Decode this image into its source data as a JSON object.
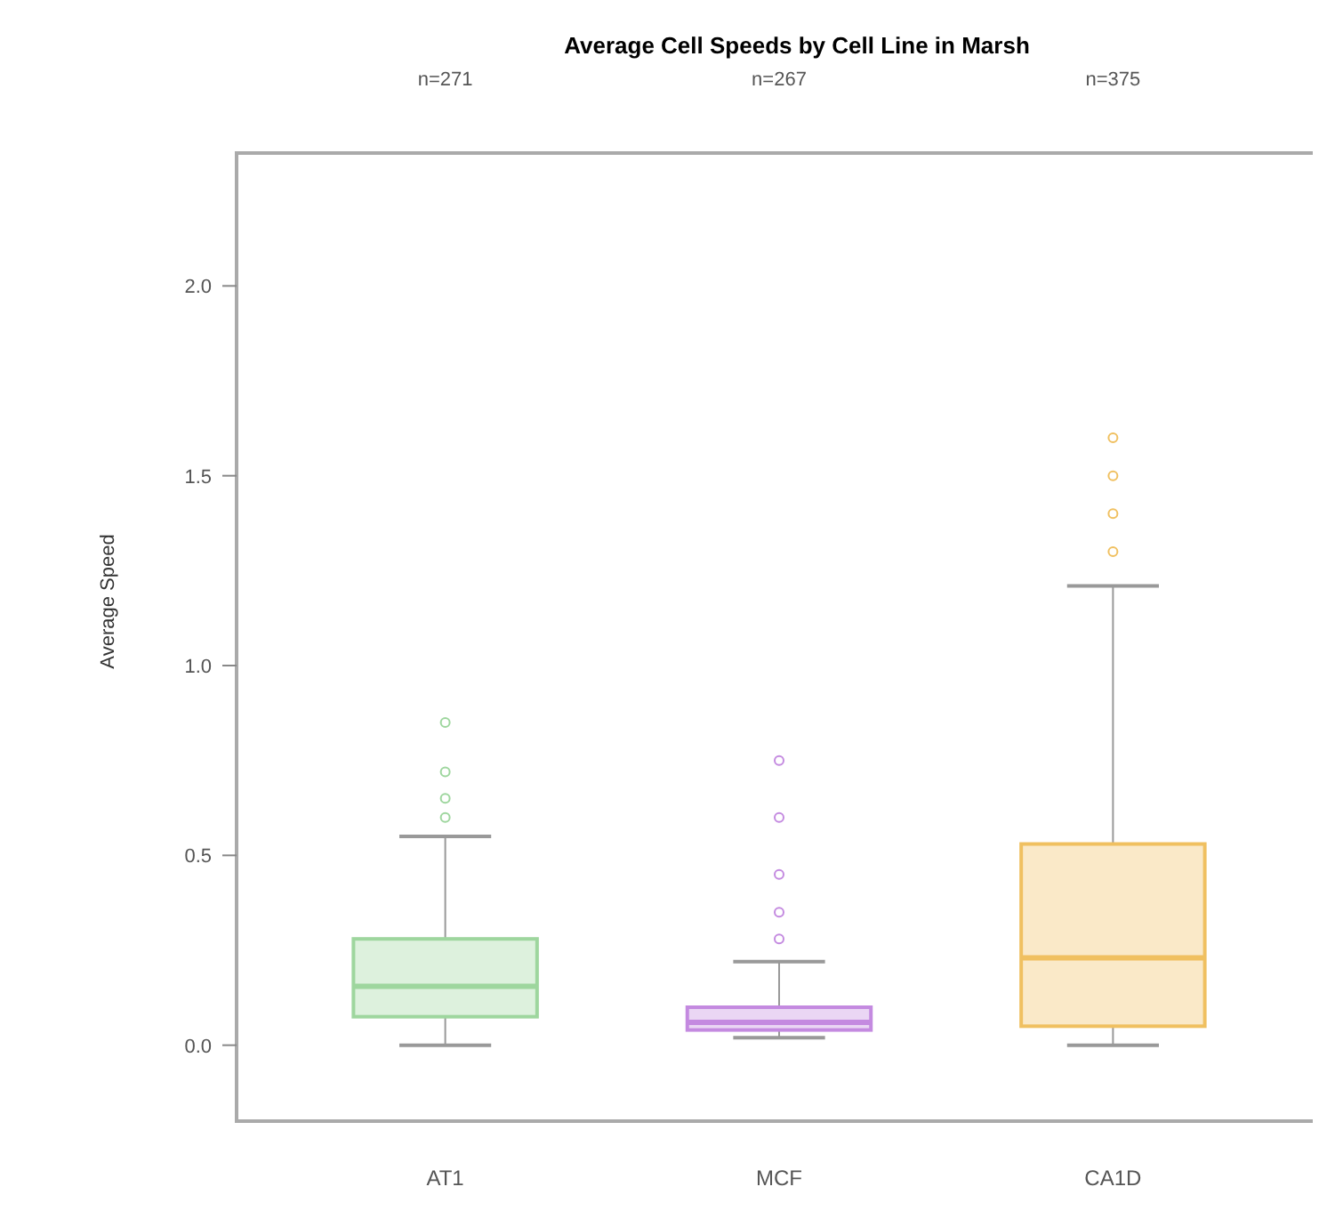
{
  "chart_data": {
    "type": "box",
    "title": "Average Cell Speeds by Cell Line in Marsh",
    "ylabel": "Average Speed",
    "categories": [
      "AT1",
      "MCF",
      "CA1D"
    ],
    "annotations": [
      "n=271",
      "n=267",
      "n=375"
    ],
    "colors": [
      "#9ed69e",
      "#c48ae0",
      "#f0c060"
    ],
    "boxes": [
      {
        "low": 0.0,
        "q1": 0.075,
        "median": 0.155,
        "q3": 0.28,
        "high": 0.55,
        "outliers": [
          0.6,
          0.65,
          0.72,
          0.85
        ]
      },
      {
        "low": 0.02,
        "q1": 0.04,
        "median": 0.06,
        "q3": 0.1,
        "high": 0.22,
        "outliers": [
          0.28,
          0.35,
          0.45,
          0.6,
          0.75
        ]
      },
      {
        "low": 0.0,
        "q1": 0.05,
        "median": 0.23,
        "q3": 0.53,
        "high": 1.21,
        "outliers": [
          1.3,
          1.4,
          1.5,
          1.6
        ]
      }
    ],
    "ylim": [
      -0.2,
      2.35
    ],
    "yticks": [
      {
        "value": 0,
        "label": "0.0"
      },
      0.5,
      {
        "value": 1,
        "label": "1.0"
      },
      1.5,
      {
        "value": 2,
        "label": "2.0"
      }
    ],
    "grid": false
  }
}
